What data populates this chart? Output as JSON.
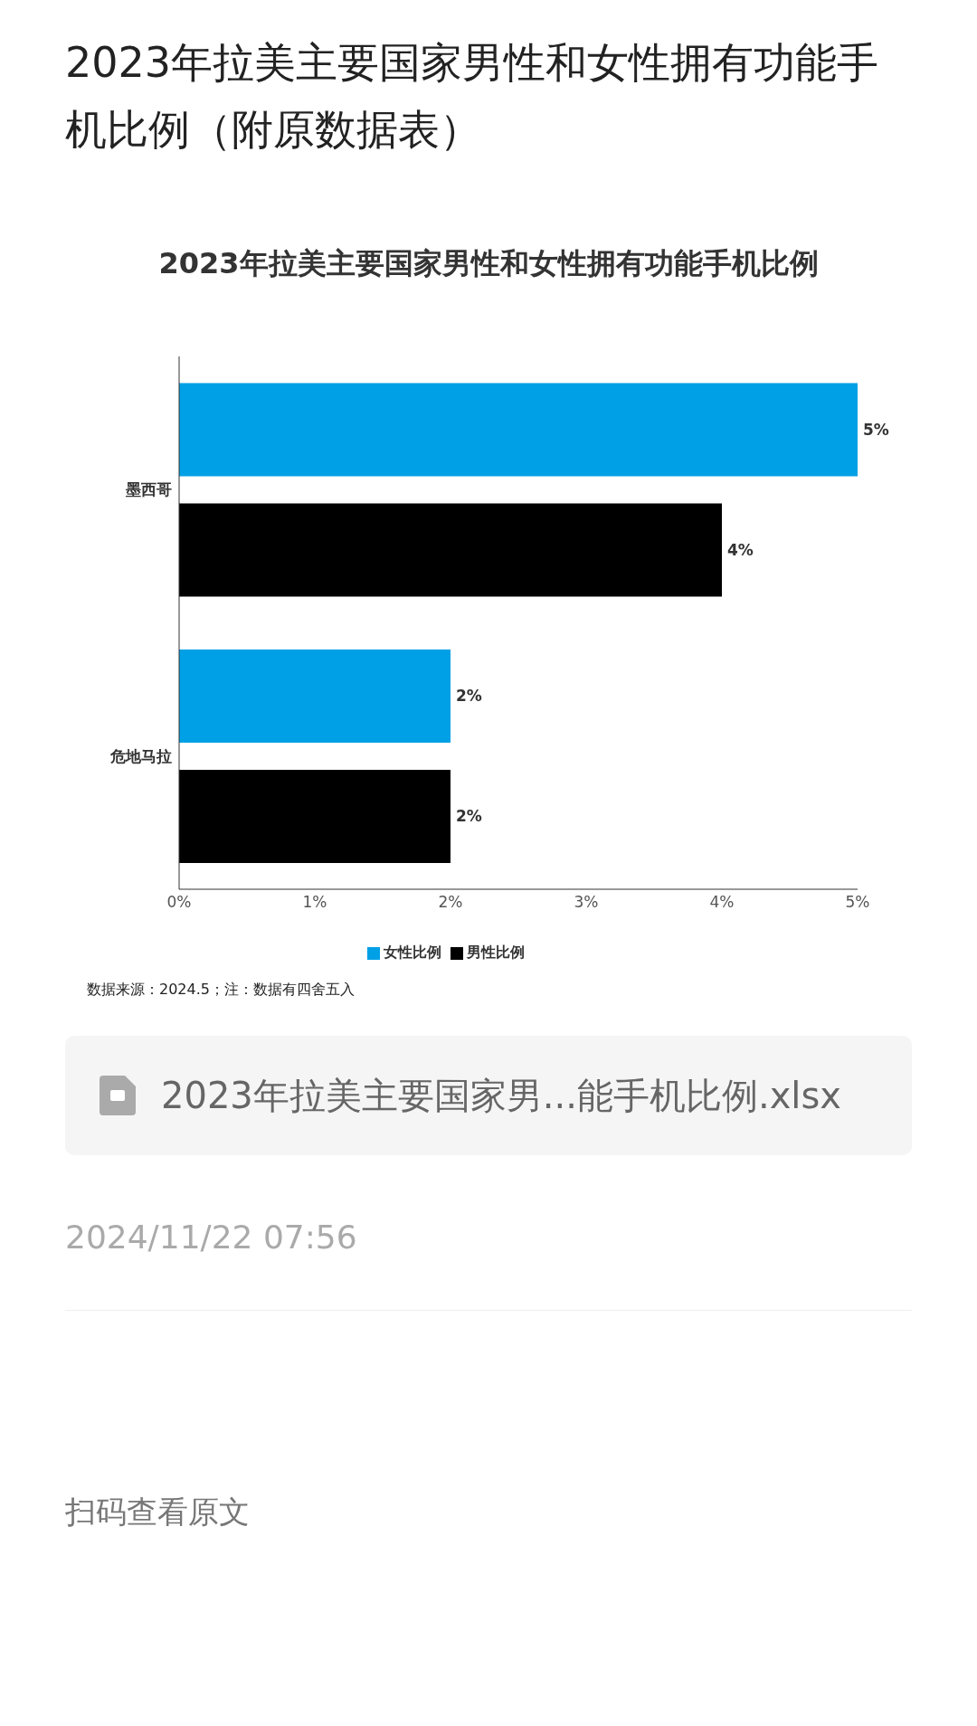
{
  "chart_data": {
    "type": "bar",
    "orientation": "horizontal",
    "title": "2023年拉美主要国家男性和女性拥有功能手机比例（附原数据表）",
    "subtitle": "2023年拉美主要国家男性和女性拥有功能手机比例",
    "categories": [
      "墨西哥",
      "危地马拉"
    ],
    "series": [
      {
        "name": "女性比例",
        "color": "#00a0e6",
        "values": [
          5,
          2
        ],
        "value_labels": [
          "5%",
          "2%"
        ]
      },
      {
        "name": "男性比例",
        "color": "#000000",
        "values": [
          4,
          2
        ],
        "value_labels": [
          "4%",
          "2%"
        ]
      }
    ],
    "xlim": [
      0,
      5
    ],
    "xticks": [
      {
        "value": 0,
        "label": "0%"
      },
      {
        "value": 1,
        "label": "1%"
      },
      {
        "value": 2,
        "label": "2%"
      },
      {
        "value": 3,
        "label": "3%"
      },
      {
        "value": 4,
        "label": "4%"
      },
      {
        "value": 5,
        "label": "5%"
      }
    ],
    "grid": false,
    "legend": "bottom",
    "annotations": [
      "数据来源：2024.5；注：数据有四舍五入",
      "2023年拉美主要国家男...能手机比例.xlsx",
      "2024/11/22 07:56",
      "扫码查看原文"
    ]
  }
}
